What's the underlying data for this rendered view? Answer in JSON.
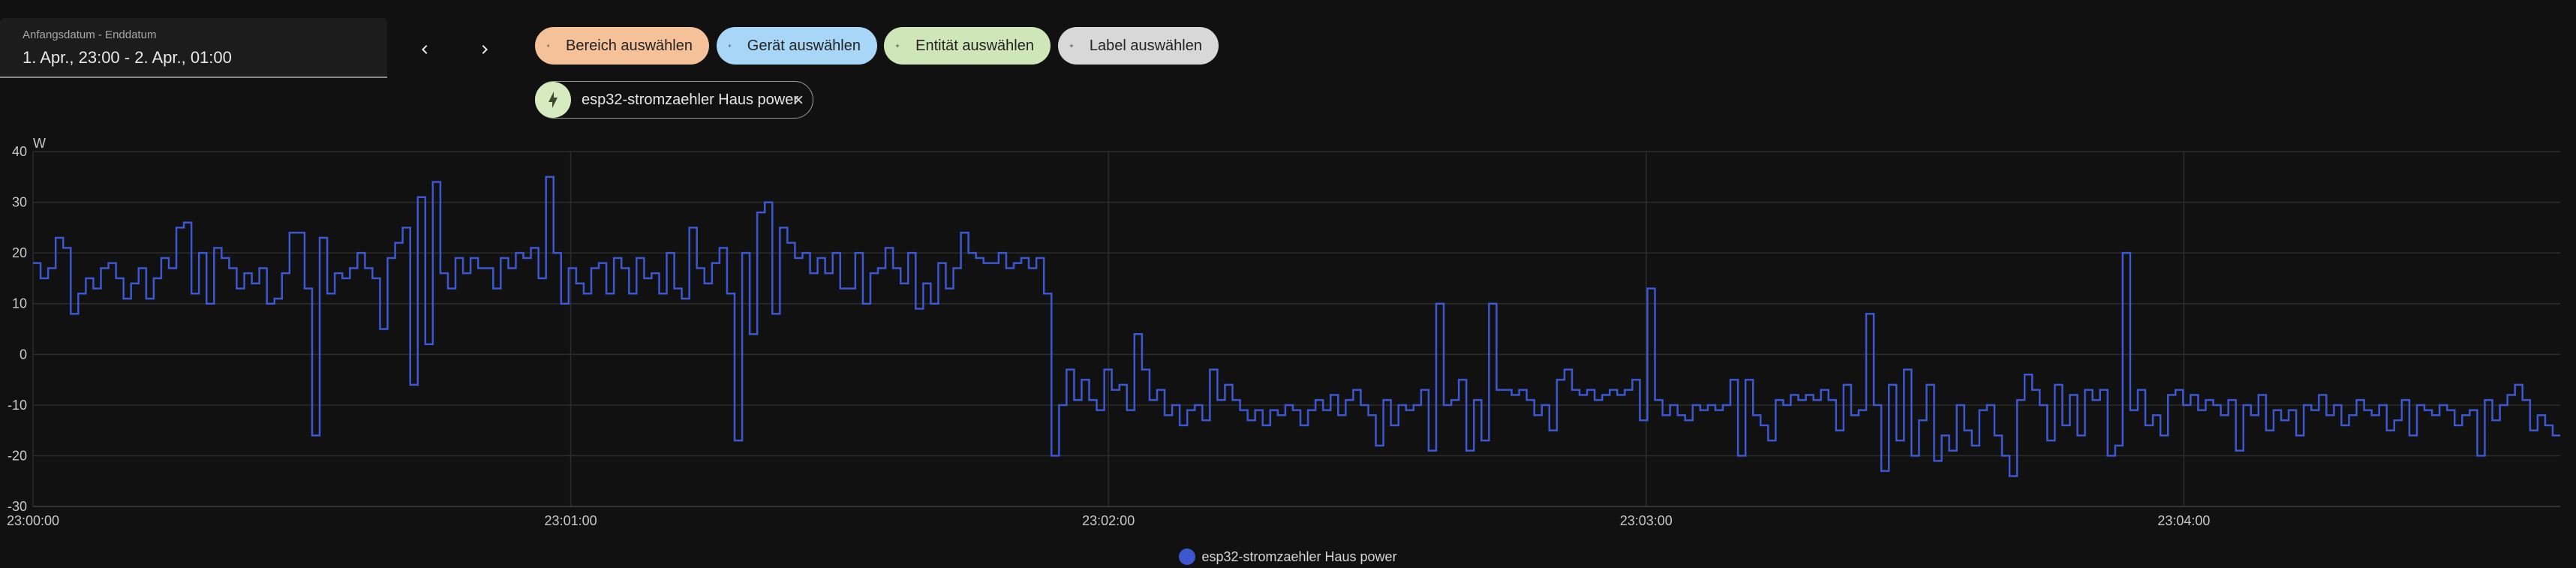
{
  "date_range": {
    "label": "Anfangsdatum - Enddatum",
    "value": "1. Apr., 23:00 - 2. Apr., 01:00"
  },
  "nav": {
    "prev_icon": "chevron-left-icon",
    "next_icon": "chevron-right-icon"
  },
  "target_chips": [
    {
      "label": "Bereich auswählen",
      "color": "#f5c198",
      "icon": "plus-icon"
    },
    {
      "label": "Gerät auswählen",
      "color": "#a7d6f7",
      "icon": "plus-icon"
    },
    {
      "label": "Entität auswählen",
      "color": "#cfe6b9",
      "icon": "plus-icon"
    },
    {
      "label": "Label auswählen",
      "color": "#d8d8d8",
      "icon": "plus-icon"
    }
  ],
  "selected_entity": {
    "label": "esp32-stromzaehler Haus power",
    "icon": "lightning-bolt-icon",
    "remove_icon": "close-icon"
  },
  "chart_data": {
    "type": "line",
    "step": true,
    "ylabel": "W",
    "ylim": [
      -30,
      40
    ],
    "yticks": [
      40,
      30,
      20,
      10,
      0,
      -10,
      -20,
      -30
    ],
    "xlim_seconds": [
      0,
      282
    ],
    "xticks": [
      {
        "t": 0,
        "label": "23:00:00"
      },
      {
        "t": 60,
        "label": "23:01:00"
      },
      {
        "t": 120,
        "label": "23:02:00"
      },
      {
        "t": 180,
        "label": "23:03:00"
      },
      {
        "t": 240,
        "label": "23:04:00"
      }
    ],
    "grid": true,
    "legend_position": "bottom-center",
    "series": [
      {
        "name": "esp32-stromzaehler Haus power",
        "color": "#3c57cf",
        "values": [
          18,
          15,
          17,
          23,
          21,
          8,
          12,
          15,
          13,
          17,
          18,
          15,
          11,
          14,
          17,
          11,
          15,
          19,
          17,
          25,
          26,
          12,
          20,
          10,
          21,
          19,
          17,
          13,
          16,
          14,
          17,
          10,
          11,
          16,
          24,
          24,
          13,
          -16,
          23,
          12,
          16,
          15,
          17,
          20,
          17,
          15,
          5,
          19,
          22,
          25,
          -6,
          31,
          2,
          34,
          16,
          13,
          19,
          16,
          19,
          17,
          17,
          13,
          19,
          17,
          20,
          19,
          21,
          15,
          35,
          20,
          10,
          17,
          14,
          12,
          17,
          18,
          12,
          19,
          17,
          12,
          19,
          15,
          16,
          12,
          20,
          13,
          11,
          25,
          17,
          14,
          18,
          21,
          12,
          -17,
          20,
          4,
          28,
          30,
          8,
          25,
          22,
          19,
          20,
          16,
          19,
          16,
          20,
          13,
          13,
          20,
          10,
          16,
          17,
          21,
          17,
          14,
          20,
          9,
          14,
          10,
          18,
          13,
          17,
          24,
          20,
          19,
          18,
          18,
          20,
          17,
          18,
          19,
          17,
          19,
          12,
          -20,
          -10,
          -3,
          -9,
          -5,
          -9,
          -11,
          -3,
          -7,
          -6,
          -11,
          4,
          -3,
          -9,
          -7,
          -12,
          -10,
          -14,
          -11,
          -10,
          -13,
          -3,
          -9,
          -6,
          -9,
          -11,
          -13,
          -11,
          -14,
          -11,
          -12,
          -10,
          -11,
          -14,
          -11,
          -9,
          -11,
          -8,
          -12,
          -9,
          -7,
          -10,
          -12,
          -18,
          -9,
          -14,
          -10,
          -11,
          -10,
          -7,
          -19,
          10,
          -10,
          -9,
          -5,
          -19,
          -9,
          -17,
          10,
          -7,
          -7,
          -8,
          -7,
          -9,
          -12,
          -10,
          -15,
          -5,
          -3,
          -7,
          -8,
          -7,
          -9,
          -8,
          -7,
          -8,
          -7,
          -5,
          -13,
          13,
          -9,
          -12,
          -10,
          -12,
          -13,
          -10,
          -11,
          -10,
          -11,
          -10,
          -5,
          -20,
          -5,
          -12,
          -14,
          -17,
          -9,
          -10,
          -8,
          -9,
          -8,
          -9,
          -7,
          -9,
          -15,
          -6,
          -12,
          -11,
          8,
          -10,
          -23,
          -6,
          -17,
          -3,
          -20,
          -13,
          -6,
          -21,
          -16,
          -19,
          -10,
          -15,
          -18,
          -11,
          -10,
          -16,
          -20,
          -24,
          -9,
          -4,
          -7,
          -10,
          -17,
          -6,
          -14,
          -8,
          -16,
          -7,
          -9,
          -7,
          -20,
          -18,
          20,
          -11,
          -7,
          -14,
          -12,
          -16,
          -8,
          -7,
          -10,
          -8,
          -11,
          -9,
          -10,
          -12,
          -9,
          -19,
          -10,
          -12,
          -8,
          -15,
          -11,
          -13,
          -11,
          -16,
          -10,
          -11,
          -8,
          -12,
          -10,
          -14,
          -12,
          -9,
          -11,
          -12,
          -10,
          -15,
          -13,
          -9,
          -16,
          -10,
          -11,
          -12,
          -10,
          -11,
          -14,
          -12,
          -11,
          -20,
          -9,
          -13,
          -10,
          -8,
          -6,
          -9,
          -15,
          -12,
          -14,
          -16
        ]
      }
    ]
  }
}
